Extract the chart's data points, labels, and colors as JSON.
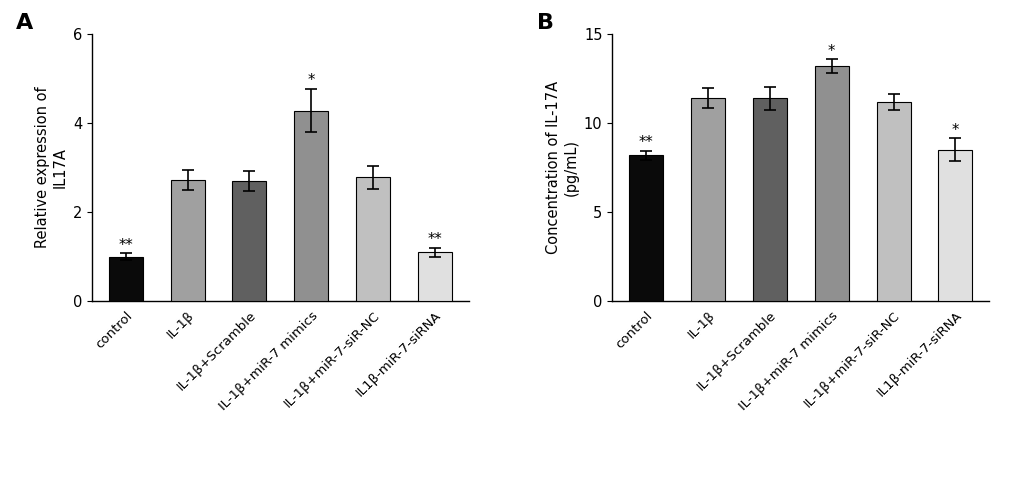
{
  "panel_A": {
    "title": "A",
    "ylabel": "Relative expression of\nIL17A",
    "ylim": [
      0,
      6
    ],
    "yticks": [
      0,
      2,
      4,
      6
    ],
    "categories": [
      "control",
      "IL-1β",
      "IL-1β+Scramble",
      "IL-1β+miR-7 mimics",
      "IL-1β+miR-7-siR-NC",
      "IL1β-miR-7-siRNA"
    ],
    "values": [
      1.0,
      2.72,
      2.7,
      4.28,
      2.78,
      1.1
    ],
    "errors": [
      0.08,
      0.22,
      0.22,
      0.48,
      0.25,
      0.1
    ],
    "colors": [
      "#0a0a0a",
      "#a0a0a0",
      "#606060",
      "#909090",
      "#c0c0c0",
      "#e0e0e0"
    ],
    "significance": [
      "**",
      "",
      "",
      "*",
      "",
      "**"
    ],
    "sig_positions": [
      1.09,
      2.96,
      2.94,
      4.78,
      3.05,
      1.22
    ]
  },
  "panel_B": {
    "title": "B",
    "ylabel": "Concentration of IL-17A\n(pg/mL)",
    "ylim": [
      0,
      15
    ],
    "yticks": [
      0,
      5,
      10,
      15
    ],
    "categories": [
      "control",
      "IL-1β",
      "IL-1β+Scramble",
      "IL-1β+miR-7 mimics",
      "IL-1β+miR-7-siR-NC",
      "IL1β-miR-7-siRNA"
    ],
    "values": [
      8.2,
      11.4,
      11.4,
      13.2,
      11.2,
      8.5
    ],
    "errors": [
      0.25,
      0.55,
      0.65,
      0.38,
      0.45,
      0.65
    ],
    "colors": [
      "#0a0a0a",
      "#a0a0a0",
      "#606060",
      "#909090",
      "#c0c0c0",
      "#e0e0e0"
    ],
    "significance": [
      "**",
      "",
      "",
      "*",
      "",
      "*"
    ],
    "sig_positions": [
      8.47,
      11.97,
      12.07,
      13.6,
      11.67,
      9.17
    ]
  },
  "fig_width": 10.2,
  "fig_height": 4.86,
  "dpi": 100
}
